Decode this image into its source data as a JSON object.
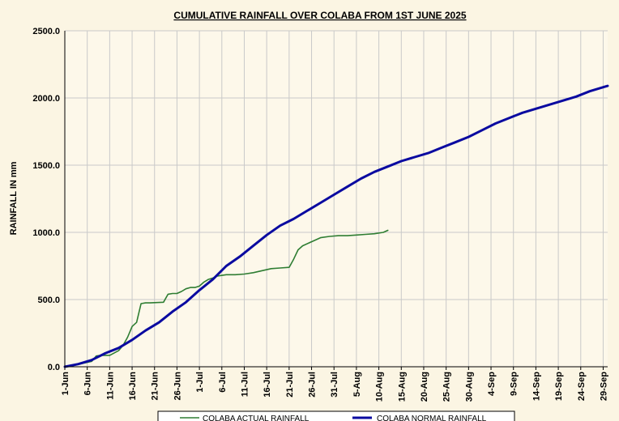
{
  "chart_data": {
    "type": "line",
    "title": "CUMULATIVE RAINFALL OVER COLABA FROM 1ST JUNE 2025",
    "xlabel": "",
    "ylabel": "RAINFALL  IN mm",
    "ylim": [
      0,
      2500
    ],
    "yticks": [
      "0.0",
      "500.0",
      "1000.0",
      "1500.0",
      "2000.0",
      "2500.0"
    ],
    "xticks": [
      "1-Jun",
      "6-Jun",
      "11-Jun",
      "16-Jun",
      "21-Jun",
      "26-Jun",
      "1-Jul",
      "6-Jul",
      "11-Jul",
      "16-Jul",
      "21-Jul",
      "26-Jul",
      "31-Jul",
      "5-Aug",
      "10-Aug",
      "15-Aug",
      "20-Aug",
      "25-Aug",
      "30-Aug",
      "4-Sep",
      "9-Sep",
      "14-Sep",
      "19-Sep",
      "24-Sep",
      "29-Sep"
    ],
    "grid": true,
    "legend_position": "bottom",
    "series": [
      {
        "name": "COLABA  ACTUAL  RAINFALL",
        "color": "#2e7d32",
        "x": [
          "1-Jun",
          "3-Jun",
          "5-Jun",
          "7-Jun",
          "8-Jun",
          "9-Jun",
          "11-Jun",
          "13-Jun",
          "14-Jun",
          "15-Jun",
          "16-Jun",
          "17-Jun",
          "18-Jun",
          "19-Jun",
          "20-Jun",
          "23-Jun",
          "24-Jun",
          "25-Jun",
          "26-Jun",
          "27-Jun",
          "28-Jun",
          "29-Jun",
          "30-Jun",
          "1-Jul",
          "2-Jul",
          "3-Jul",
          "4-Jul",
          "5-Jul",
          "7-Jul",
          "9-Jul",
          "11-Jul",
          "13-Jul",
          "15-Jul",
          "17-Jul",
          "19-Jul",
          "21-Jul",
          "22-Jul",
          "23-Jul",
          "24-Jul",
          "26-Jul",
          "28-Jul",
          "30-Jul",
          "1-Aug",
          "3-Aug",
          "5-Aug",
          "7-Aug",
          "9-Aug",
          "11-Aug",
          "12-Aug"
        ],
        "values": [
          0,
          10,
          25,
          40,
          80,
          85,
          85,
          120,
          160,
          220,
          300,
          330,
          470,
          475,
          475,
          480,
          540,
          545,
          545,
          560,
          580,
          590,
          590,
          600,
          630,
          650,
          660,
          675,
          685,
          685,
          690,
          700,
          715,
          730,
          735,
          740,
          800,
          870,
          900,
          930,
          960,
          970,
          975,
          975,
          980,
          985,
          990,
          1000,
          1015
        ]
      },
      {
        "name": "COLABA  NORMAL  RAINFALL",
        "color": "#0a0aa0",
        "x": [
          "1-Jun",
          "4-Jun",
          "7-Jun",
          "10-Jun",
          "13-Jun",
          "16-Jun",
          "19-Jun",
          "22-Jun",
          "25-Jun",
          "28-Jun",
          "1-Jul",
          "4-Jul",
          "7-Jul",
          "10-Jul",
          "13-Jul",
          "16-Jul",
          "19-Jul",
          "22-Jul",
          "25-Jul",
          "28-Jul",
          "31-Jul",
          "3-Aug",
          "6-Aug",
          "9-Aug",
          "12-Aug",
          "15-Aug",
          "18-Aug",
          "21-Aug",
          "24-Aug",
          "27-Aug",
          "30-Aug",
          "2-Sep",
          "5-Sep",
          "8-Sep",
          "11-Sep",
          "14-Sep",
          "17-Sep",
          "20-Sep",
          "23-Sep",
          "26-Sep",
          "29-Sep",
          "30-Sep"
        ],
        "values": [
          0,
          20,
          50,
          100,
          140,
          200,
          270,
          330,
          410,
          480,
          570,
          650,
          750,
          820,
          900,
          980,
          1050,
          1100,
          1160,
          1220,
          1280,
          1340,
          1400,
          1450,
          1490,
          1530,
          1560,
          1590,
          1630,
          1670,
          1710,
          1760,
          1810,
          1850,
          1890,
          1920,
          1950,
          1980,
          2010,
          2050,
          2080,
          2090
        ]
      }
    ]
  }
}
